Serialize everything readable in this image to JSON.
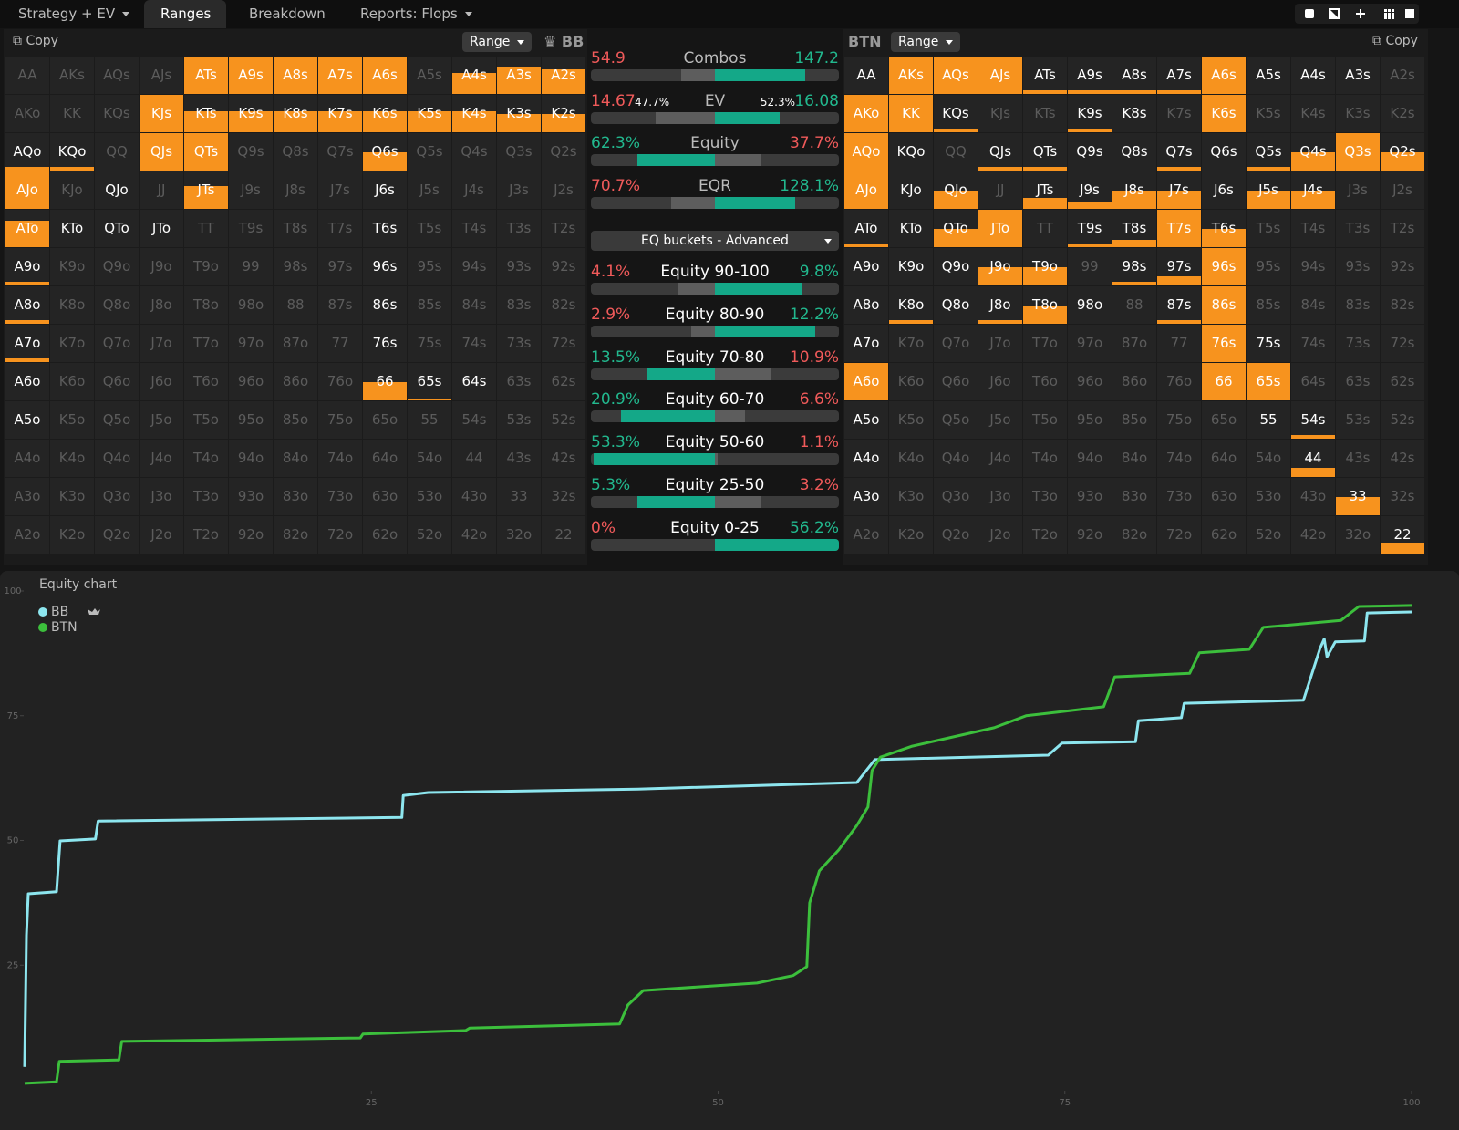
{
  "tabs": [
    "Strategy + EV",
    "Ranges",
    "Breakdown",
    "Reports: Flops"
  ],
  "copy": "Copy",
  "range_button": "Range",
  "hands": [
    [
      "AA",
      "AKs",
      "AQs",
      "AJs",
      "ATs",
      "A9s",
      "A8s",
      "A7s",
      "A6s",
      "A5s",
      "A4s",
      "A3s",
      "A2s"
    ],
    [
      "AKo",
      "KK",
      "KQs",
      "KJs",
      "KTs",
      "K9s",
      "K8s",
      "K7s",
      "K6s",
      "K5s",
      "K4s",
      "K3s",
      "K2s"
    ],
    [
      "AQo",
      "KQo",
      "QQ",
      "QJs",
      "QTs",
      "Q9s",
      "Q8s",
      "Q7s",
      "Q6s",
      "Q5s",
      "Q4s",
      "Q3s",
      "Q2s"
    ],
    [
      "AJo",
      "KJo",
      "QJo",
      "JJ",
      "JTs",
      "J9s",
      "J8s",
      "J7s",
      "J6s",
      "J5s",
      "J4s",
      "J3s",
      "J2s"
    ],
    [
      "ATo",
      "KTo",
      "QTo",
      "JTo",
      "TT",
      "T9s",
      "T8s",
      "T7s",
      "T6s",
      "T5s",
      "T4s",
      "T3s",
      "T2s"
    ],
    [
      "A9o",
      "K9o",
      "Q9o",
      "J9o",
      "T9o",
      "99",
      "98s",
      "97s",
      "96s",
      "95s",
      "94s",
      "93s",
      "92s"
    ],
    [
      "A8o",
      "K8o",
      "Q8o",
      "J8o",
      "T8o",
      "98o",
      "88",
      "87s",
      "86s",
      "85s",
      "84s",
      "83s",
      "82s"
    ],
    [
      "A7o",
      "K7o",
      "Q7o",
      "J7o",
      "T7o",
      "97o",
      "87o",
      "77",
      "76s",
      "75s",
      "74s",
      "73s",
      "72s"
    ],
    [
      "A6o",
      "K6o",
      "Q6o",
      "J6o",
      "T6o",
      "96o",
      "86o",
      "76o",
      "66",
      "65s",
      "64s",
      "63s",
      "62s"
    ],
    [
      "A5o",
      "K5o",
      "Q5o",
      "J5o",
      "T5o",
      "95o",
      "85o",
      "75o",
      "65o",
      "55",
      "54s",
      "53s",
      "52s"
    ],
    [
      "A4o",
      "K4o",
      "Q4o",
      "J4o",
      "T4o",
      "94o",
      "84o",
      "74o",
      "64o",
      "54o",
      "44",
      "43s",
      "42s"
    ],
    [
      "A3o",
      "K3o",
      "Q3o",
      "J3o",
      "T3o",
      "93o",
      "83o",
      "73o",
      "63o",
      "53o",
      "43o",
      "33",
      "32s"
    ],
    [
      "A2o",
      "K2o",
      "Q2o",
      "J2o",
      "T2o",
      "92o",
      "82o",
      "72o",
      "62o",
      "52o",
      "42o",
      "32o",
      "22"
    ]
  ],
  "players": [
    {
      "name": "BB",
      "frequencies": [
        [
          null,
          null,
          null,
          null,
          100,
          100,
          100,
          100,
          100,
          null,
          55,
          70,
          65
        ],
        [
          null,
          null,
          null,
          100,
          55,
          55,
          55,
          55,
          55,
          55,
          55,
          50,
          50
        ],
        [
          10,
          10,
          null,
          100,
          100,
          null,
          null,
          null,
          50,
          null,
          null,
          null,
          null
        ],
        [
          100,
          null,
          0,
          null,
          60,
          null,
          null,
          null,
          0,
          null,
          null,
          null,
          null
        ],
        [
          70,
          0,
          0,
          0,
          null,
          null,
          null,
          null,
          0,
          null,
          null,
          null,
          null
        ],
        [
          10,
          null,
          null,
          null,
          null,
          null,
          null,
          null,
          0,
          null,
          null,
          null,
          null
        ],
        [
          10,
          null,
          null,
          null,
          null,
          null,
          null,
          null,
          0,
          null,
          null,
          null,
          null
        ],
        [
          10,
          null,
          null,
          null,
          null,
          null,
          null,
          null,
          0,
          null,
          null,
          null,
          null
        ],
        [
          0,
          null,
          null,
          null,
          null,
          null,
          null,
          null,
          50,
          5,
          0,
          null,
          null
        ],
        [
          0,
          null,
          null,
          null,
          null,
          null,
          null,
          null,
          null,
          null,
          null,
          null,
          null
        ],
        [
          null,
          null,
          null,
          null,
          null,
          null,
          null,
          null,
          null,
          null,
          null,
          null,
          null
        ],
        [
          null,
          null,
          null,
          null,
          null,
          null,
          null,
          null,
          null,
          null,
          null,
          null,
          null
        ],
        [
          null,
          null,
          null,
          null,
          null,
          null,
          null,
          null,
          null,
          null,
          null,
          null,
          null
        ]
      ]
    },
    {
      "name": "BTN",
      "frequencies": [
        [
          0,
          100,
          100,
          100,
          10,
          10,
          10,
          10,
          100,
          0,
          0,
          0,
          null
        ],
        [
          100,
          100,
          10,
          null,
          null,
          10,
          0,
          null,
          100,
          null,
          null,
          null,
          null
        ],
        [
          100,
          0,
          null,
          10,
          10,
          0,
          0,
          10,
          0,
          10,
          50,
          100,
          50
        ],
        [
          100,
          0,
          50,
          null,
          30,
          20,
          50,
          50,
          0,
          50,
          50,
          null,
          null
        ],
        [
          10,
          0,
          50,
          100,
          null,
          10,
          20,
          100,
          50,
          null,
          null,
          null,
          null
        ],
        [
          0,
          0,
          0,
          50,
          50,
          null,
          10,
          25,
          100,
          null,
          null,
          null,
          null
        ],
        [
          0,
          10,
          0,
          10,
          50,
          0,
          null,
          10,
          100,
          null,
          null,
          null,
          null
        ],
        [
          0,
          null,
          null,
          null,
          null,
          null,
          null,
          null,
          100,
          0,
          null,
          null,
          null
        ],
        [
          100,
          null,
          null,
          null,
          null,
          null,
          null,
          null,
          100,
          100,
          null,
          null,
          null
        ],
        [
          0,
          null,
          null,
          null,
          null,
          null,
          null,
          null,
          null,
          0,
          10,
          null,
          null
        ],
        [
          0,
          null,
          null,
          null,
          null,
          null,
          null,
          null,
          null,
          null,
          25,
          null,
          null
        ],
        [
          0,
          null,
          null,
          null,
          null,
          null,
          null,
          null,
          null,
          null,
          null,
          50,
          null
        ],
        [
          null,
          null,
          null,
          null,
          null,
          null,
          null,
          null,
          null,
          null,
          null,
          null,
          30
        ]
      ]
    }
  ],
  "stats": [
    {
      "label": "Combos",
      "values": [
        54.9,
        147.2
      ]
    },
    {
      "label": "EV",
      "values": [
        14.67,
        16.08
      ],
      "shares": [
        47.7,
        52.3
      ],
      "share_labels": [
        "47.7%",
        "52.3%"
      ]
    },
    {
      "label": "Equity",
      "values": [
        62.3,
        37.7
      ],
      "value_labels": [
        "62.3%",
        "37.7%"
      ]
    },
    {
      "label": "EQR",
      "values": [
        70.7,
        128.1
      ],
      "value_labels": [
        "70.7%",
        "128.1%"
      ]
    }
  ],
  "dropdown": "EQ buckets - Advanced",
  "buckets": [
    {
      "label": "Equity 90-100",
      "values": [
        4.1,
        9.8
      ],
      "value_labels": [
        "4.1%",
        "9.8%"
      ]
    },
    {
      "label": "Equity 80-90",
      "values": [
        2.9,
        12.2
      ],
      "value_labels": [
        "2.9%",
        "12.2%"
      ]
    },
    {
      "label": "Equity 70-80",
      "values": [
        13.5,
        10.9
      ],
      "value_labels": [
        "13.5%",
        "10.9%"
      ]
    },
    {
      "label": "Equity 60-70",
      "values": [
        20.9,
        6.6
      ],
      "value_labels": [
        "20.9%",
        "6.6%"
      ]
    },
    {
      "label": "Equity 50-60",
      "values": [
        53.3,
        1.1
      ],
      "value_labels": [
        "53.3%",
        "1.1%"
      ]
    },
    {
      "label": "Equity 25-50",
      "values": [
        5.3,
        3.2
      ],
      "value_labels": [
        "5.3%",
        "3.2%"
      ]
    },
    {
      "label": "Equity 0-25",
      "values": [
        0,
        56.2
      ],
      "value_labels": [
        "0%",
        "56.2%"
      ]
    }
  ],
  "chart_data": {
    "type": "line",
    "title": "Equity chart",
    "xlim": [
      0,
      100
    ],
    "xticks": [
      25,
      50,
      75,
      100
    ],
    "ylim": [
      0,
      100
    ],
    "yticks": [
      25,
      50,
      75,
      100
    ],
    "series": [
      {
        "name": "BB",
        "color": "#8de6ef",
        "x": [
          0,
          0.13,
          0.26,
          2.3,
          2.56,
          5.1,
          5.3,
          27.2,
          27.3,
          29.1,
          44.2,
          60.0,
          61.3,
          73.8,
          74.8,
          80.1,
          80.3,
          83.4,
          83.6,
          92.2,
          93.4,
          93.7,
          93.9,
          94.5,
          96.6,
          96.8,
          100
        ],
        "values": [
          4.6,
          31,
          39.3,
          39.7,
          49.9,
          50.3,
          53.9,
          54.6,
          59.0,
          59.6,
          60.3,
          61.6,
          66.2,
          67.1,
          69.5,
          69.8,
          74.0,
          74.6,
          77.5,
          78.1,
          88.5,
          90.4,
          86.8,
          89.8,
          90.0,
          95.6,
          95.8
        ]
      },
      {
        "name": "BTN",
        "color": "#3cbf3c",
        "x": [
          0,
          2.3,
          2.5,
          6.8,
          7.0,
          24.2,
          24.4,
          31.8,
          32.1,
          42.9,
          43.5,
          44.6,
          52.8,
          55.4,
          56.4,
          56.6,
          57.3,
          58.7,
          60.0,
          60.8,
          61.1,
          61.7,
          64.0,
          69.9,
          72.2,
          77.8,
          78.6,
          84.0,
          84.7,
          88.3,
          89.3,
          94.9,
          96.2,
          100
        ],
        "values": [
          1.3,
          1.6,
          5.7,
          6.0,
          9.7,
          10.4,
          11.2,
          11.9,
          12.4,
          13.2,
          17.0,
          19.9,
          21.4,
          22.9,
          24.7,
          37.5,
          43.9,
          48.1,
          53.0,
          56.7,
          64.0,
          66.7,
          68.9,
          72.6,
          75.0,
          76.8,
          82.8,
          83.5,
          87.6,
          88.3,
          92.7,
          94.1,
          96.9,
          97.1
        ]
      }
    ]
  }
}
